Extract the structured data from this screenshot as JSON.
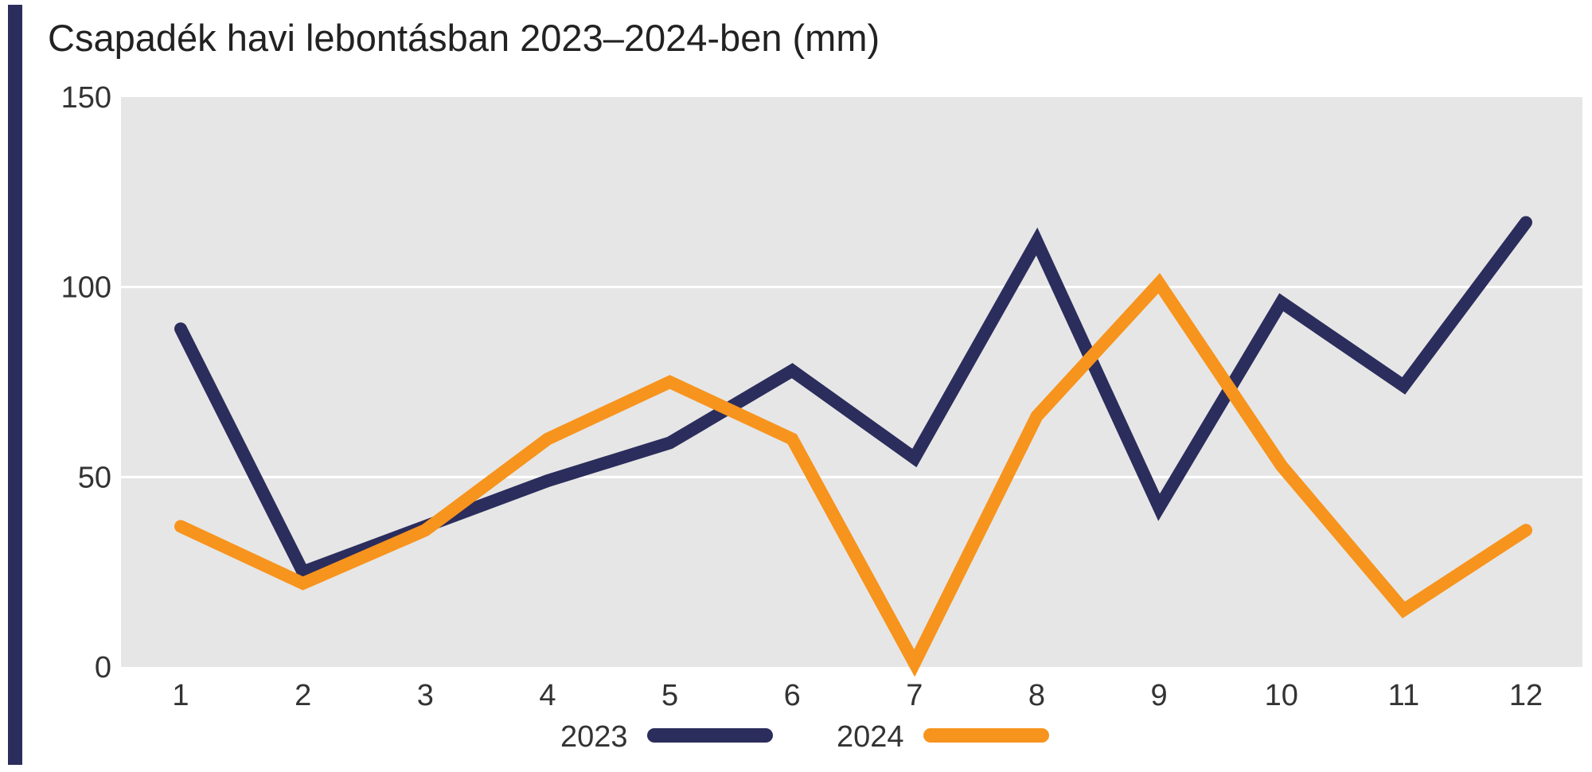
{
  "chart_data": {
    "type": "line",
    "title": "Csapadék havi lebontásban 2023–2024-ben (mm)",
    "xlabel": "",
    "ylabel": "",
    "categories": [
      "1",
      "2",
      "3",
      "4",
      "5",
      "6",
      "7",
      "8",
      "9",
      "10",
      "11",
      "12"
    ],
    "ylim": [
      0,
      150
    ],
    "yticks": [
      "0",
      "50",
      "100",
      "150"
    ],
    "grid": true,
    "legend_position": "bottom",
    "series": [
      {
        "name": "2023",
        "color": "#2b2d5c",
        "values": [
          89,
          25,
          37,
          49,
          59,
          78,
          55,
          112,
          42,
          96,
          74,
          117
        ]
      },
      {
        "name": "2024",
        "color": "#f7941d",
        "values": [
          37,
          22,
          36,
          60,
          75,
          60,
          1,
          66,
          101,
          53,
          15,
          36
        ]
      }
    ],
    "plot_background": "#e6e6e6"
  }
}
